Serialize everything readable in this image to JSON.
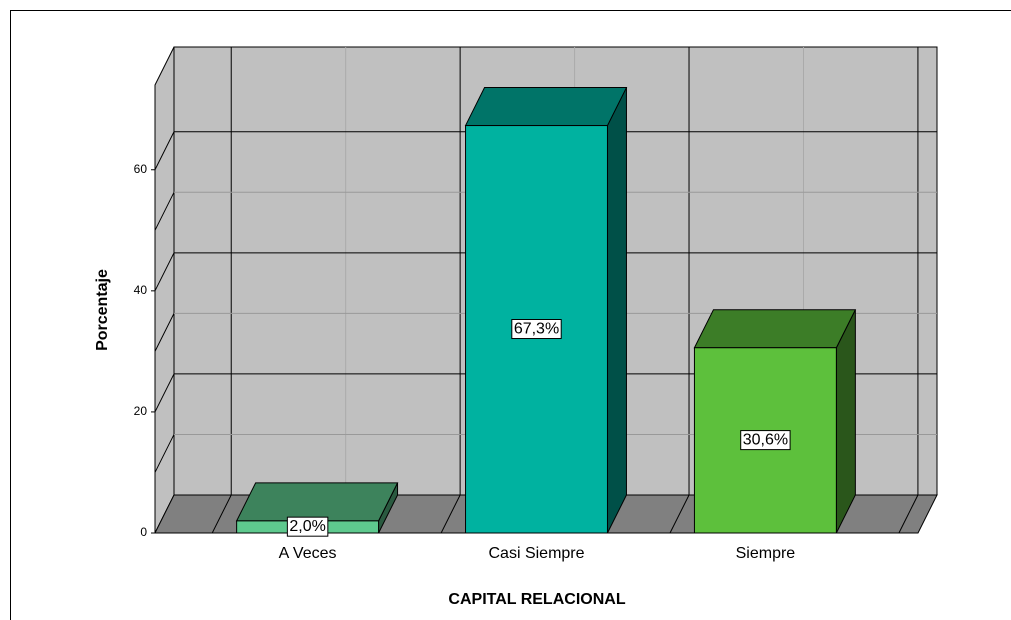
{
  "chart_data": {
    "type": "bar3d",
    "x_label": "CAPITAL RELACIONAL",
    "y_label": "Porcentaje",
    "categories": [
      "A Veces",
      "Casi Siempre",
      "Siempre"
    ],
    "values": [
      2.0,
      67.3,
      30.6
    ],
    "value_labels": [
      "2,0%",
      "67,3%",
      "30,6%"
    ],
    "colors": [
      "#5ec98e",
      "#00b2a0",
      "#5dc03c"
    ],
    "ylim": [
      0,
      74
    ],
    "yticks": [
      0,
      20,
      40,
      60
    ],
    "grid": true
  }
}
